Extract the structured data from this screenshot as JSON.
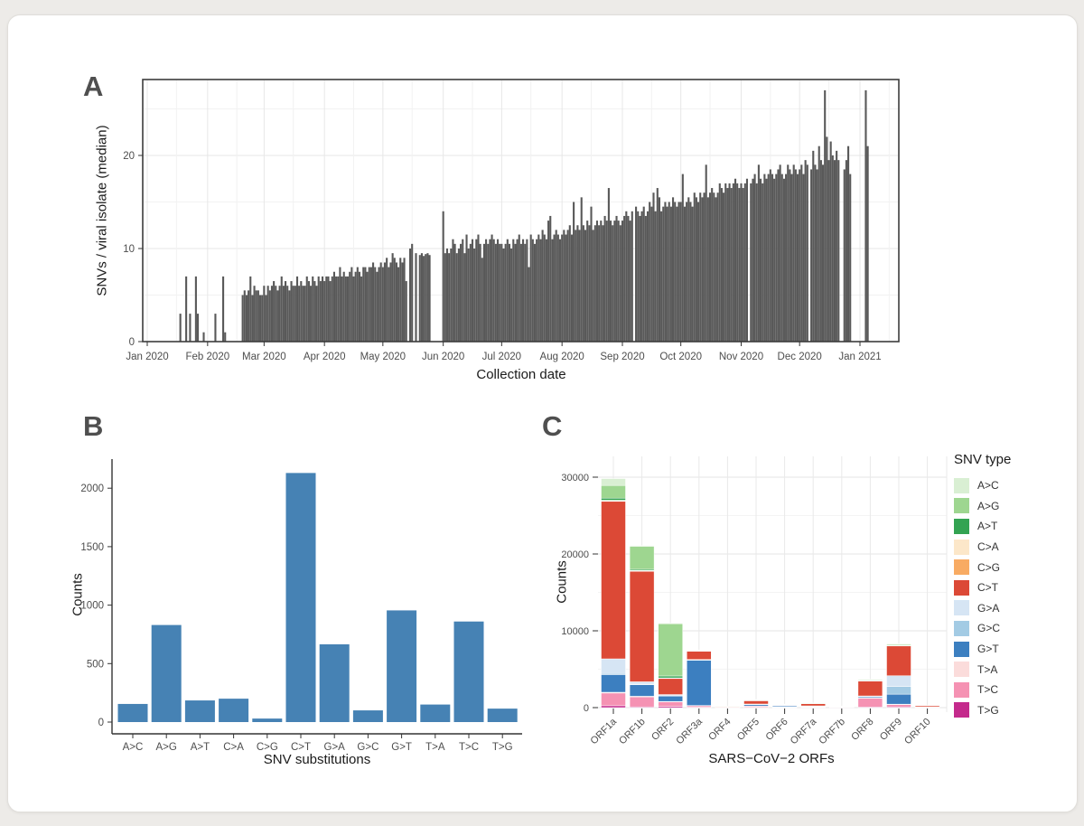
{
  "figure": {
    "background_color": "#edebe8",
    "card_color": "#ffffff",
    "panel_letter_color": "#4f4f4f"
  },
  "chart_data": [
    {
      "panel_label": "A",
      "type": "bar",
      "title": "",
      "xlabel": "Collection date",
      "ylabel": "SNVs / viral isolate (median)",
      "bar_color": "#595959",
      "x_tick_labels": [
        "Jan 2020",
        "Feb 2020",
        "Mar 2020",
        "Apr 2020",
        "May 2020",
        "Jun 2020",
        "Jul 2020",
        "Aug 2020",
        "Sep 2020",
        "Oct 2020",
        "Nov 2020",
        "Dec 2020",
        "Jan 2021"
      ],
      "x_tick_day_index": [
        0,
        31,
        60,
        91,
        121,
        152,
        182,
        213,
        244,
        274,
        305,
        335,
        366
      ],
      "y_ticks": [
        0,
        10,
        20
      ],
      "y_minor_ticks": [
        5,
        15,
        25
      ],
      "ylim": [
        0,
        28.2
      ],
      "grid": true,
      "values": [
        0,
        0,
        0,
        0,
        0,
        0,
        0,
        0,
        0,
        0,
        0,
        0,
        0,
        0,
        0,
        0,
        0,
        3,
        0,
        0,
        7,
        0,
        3,
        0,
        0,
        7,
        3,
        0,
        0,
        1,
        0,
        0,
        0,
        0,
        0,
        3,
        0,
        0,
        0,
        7,
        1,
        0,
        0,
        0,
        0,
        0,
        0,
        0,
        0,
        5,
        5.5,
        5,
        5.5,
        7,
        5,
        6,
        5.5,
        5.5,
        5,
        5,
        6,
        5,
        6,
        5.5,
        6,
        6.5,
        6,
        5.5,
        6,
        7,
        6,
        6.5,
        6,
        5.5,
        6.5,
        6,
        6,
        7,
        6,
        6.5,
        6,
        6,
        7,
        6.5,
        6,
        7,
        6.5,
        6,
        7,
        6.5,
        7,
        6.5,
        7,
        7,
        6.5,
        7,
        7.5,
        7,
        7,
        8,
        7,
        7.5,
        7,
        7,
        7.5,
        8,
        7,
        7.5,
        8,
        7.5,
        7,
        8,
        8,
        7.5,
        8,
        8,
        8.5,
        8,
        7.5,
        8,
        8.5,
        8,
        8.5,
        9,
        8,
        8.5,
        9.5,
        9,
        8.5,
        8,
        9,
        8.5,
        9,
        6.5,
        0,
        10,
        10.5,
        0,
        9.5,
        0,
        9.3,
        9.5,
        9.2,
        9.4,
        9.5,
        9.3,
        0,
        0,
        0,
        0,
        0,
        0,
        14,
        9.5,
        10,
        9.5,
        10,
        11,
        10.5,
        9.5,
        10,
        10.5,
        11,
        9.5,
        11.5,
        10,
        10.5,
        11,
        10,
        11,
        11.5,
        10.5,
        9,
        10.5,
        11,
        10.5,
        11,
        11.5,
        11,
        10.5,
        11,
        10.5,
        10.5,
        10,
        10.5,
        11,
        10.5,
        10,
        11,
        10.5,
        11,
        11.5,
        10.5,
        11,
        10.5,
        11,
        8,
        11.5,
        11,
        10.5,
        11,
        11.5,
        11,
        12,
        11.5,
        11,
        13,
        13.5,
        11,
        11.5,
        12,
        11.5,
        11,
        11.5,
        12,
        11.5,
        12,
        12.5,
        11.5,
        15,
        12,
        12.5,
        12,
        15.5,
        12.5,
        12,
        13,
        12.5,
        14.5,
        12,
        12.5,
        13,
        12.5,
        13,
        12.5,
        13.5,
        13,
        16.5,
        13,
        12.5,
        13,
        13.5,
        13,
        12.5,
        13,
        13.5,
        14,
        13.5,
        13,
        14,
        0,
        14.5,
        14,
        13.5,
        14,
        14.5,
        13.5,
        14,
        15,
        14.5,
        16,
        14,
        16.5,
        15.5,
        14,
        14.5,
        15,
        14.5,
        15,
        14.5,
        15.5,
        15,
        14.5,
        15,
        15,
        18,
        14.5,
        15,
        15.5,
        15,
        14.5,
        16,
        15.5,
        15,
        16,
        15.5,
        16,
        19,
        15.5,
        16,
        16.5,
        16,
        15.5,
        16,
        17,
        16.5,
        16,
        17,
        16.5,
        17,
        16.5,
        17,
        17.5,
        17,
        16.5,
        17,
        16.5,
        17,
        17.5,
        0,
        17,
        17.5,
        18,
        17,
        19,
        17.5,
        17,
        18,
        17.5,
        18,
        18.5,
        18,
        17.5,
        18,
        18.5,
        19,
        18,
        17.5,
        18,
        19,
        18.5,
        18,
        19,
        18.5,
        18,
        18.5,
        19,
        18,
        19.5,
        19,
        0,
        18.5,
        20.5,
        19,
        18.5,
        21,
        19.5,
        19,
        27,
        22,
        19.5,
        21.5,
        20,
        19.5,
        20.5,
        19.5,
        0,
        0,
        18.5,
        19.5,
        21,
        18,
        0,
        0,
        0,
        0,
        0,
        0,
        0,
        27,
        21,
        0
      ]
    },
    {
      "panel_label": "B",
      "type": "bar",
      "title": "",
      "xlabel": "SNV substitutions",
      "ylabel": "Counts",
      "bar_color": "#4682b4",
      "categories": [
        "A>C",
        "A>G",
        "A>T",
        "C>A",
        "C>G",
        "C>T",
        "G>A",
        "G>C",
        "G>T",
        "T>A",
        "T>C",
        "T>G"
      ],
      "values": [
        155,
        830,
        185,
        200,
        30,
        2130,
        665,
        100,
        955,
        150,
        860,
        115
      ],
      "y_ticks": [
        0,
        500,
        1000,
        1500,
        2000
      ],
      "ylim": [
        0,
        2250
      ],
      "grid": false
    },
    {
      "panel_label": "C",
      "type": "stacked-bar",
      "title": "",
      "xlabel": "SARS−CoV−2 ORFs",
      "ylabel": "Counts",
      "legend_title": "SNV type",
      "legend_position": "right",
      "categories": [
        "ORF1a",
        "ORF1b",
        "ORF2",
        "ORF3a",
        "ORF4",
        "ORF5",
        "ORF6",
        "ORF7a",
        "ORF7b",
        "ORF8",
        "ORF9",
        "ORF10"
      ],
      "y_ticks": [
        0,
        10000,
        20000,
        30000
      ],
      "y_minor_ticks": [
        5000,
        15000,
        25000
      ],
      "ylim": [
        0,
        32700
      ],
      "grid": true,
      "stack_order_bottom_to_top": [
        "T>G",
        "T>C",
        "T>A",
        "G>T",
        "G>C",
        "G>A",
        "C>T",
        "C>G",
        "C>A",
        "A>T",
        "A>G",
        "A>C"
      ],
      "series": [
        {
          "name": "A>C",
          "color": "#d9efd3",
          "values": [
            900,
            100,
            80,
            20,
            0,
            10,
            5,
            5,
            0,
            60,
            30,
            0
          ]
        },
        {
          "name": "A>G",
          "color": "#9ed690",
          "values": [
            1650,
            3000,
            6800,
            50,
            20,
            80,
            30,
            40,
            5,
            100,
            150,
            10
          ]
        },
        {
          "name": "A>T",
          "color": "#33a352",
          "values": [
            270,
            150,
            250,
            30,
            0,
            10,
            5,
            5,
            0,
            20,
            50,
            0
          ]
        },
        {
          "name": "C>A",
          "color": "#fce7c9",
          "values": [
            100,
            60,
            40,
            20,
            0,
            20,
            5,
            5,
            0,
            20,
            30,
            0
          ]
        },
        {
          "name": "C>G",
          "color": "#f8ab63",
          "values": [
            50,
            30,
            30,
            10,
            0,
            10,
            5,
            5,
            0,
            20,
            20,
            0
          ]
        },
        {
          "name": "C>T",
          "color": "#dc4936",
          "values": [
            20500,
            14400,
            2100,
            1100,
            100,
            450,
            60,
            320,
            40,
            1950,
            3900,
            180
          ]
        },
        {
          "name": "G>A",
          "color": "#d6e5f4",
          "values": [
            1900,
            300,
            150,
            60,
            5,
            30,
            80,
            20,
            5,
            60,
            1400,
            5
          ]
        },
        {
          "name": "G>C",
          "color": "#a3cbe4",
          "values": [
            150,
            80,
            50,
            30,
            5,
            20,
            20,
            10,
            5,
            30,
            1000,
            5
          ]
        },
        {
          "name": "G>T",
          "color": "#3c7fc0",
          "values": [
            2300,
            1500,
            700,
            5900,
            20,
            200,
            150,
            80,
            20,
            150,
            1300,
            10
          ]
        },
        {
          "name": "T>A",
          "color": "#fbdcdb",
          "values": [
            100,
            80,
            50,
            30,
            5,
            20,
            10,
            10,
            5,
            50,
            50,
            5
          ]
        },
        {
          "name": "T>C",
          "color": "#f592b3",
          "values": [
            1650,
            1300,
            600,
            200,
            30,
            150,
            60,
            80,
            60,
            1150,
            300,
            50
          ]
        },
        {
          "name": "T>G",
          "color": "#c42a8c",
          "values": [
            250,
            100,
            150,
            50,
            10,
            50,
            20,
            30,
            30,
            80,
            100,
            20
          ]
        }
      ]
    }
  ]
}
